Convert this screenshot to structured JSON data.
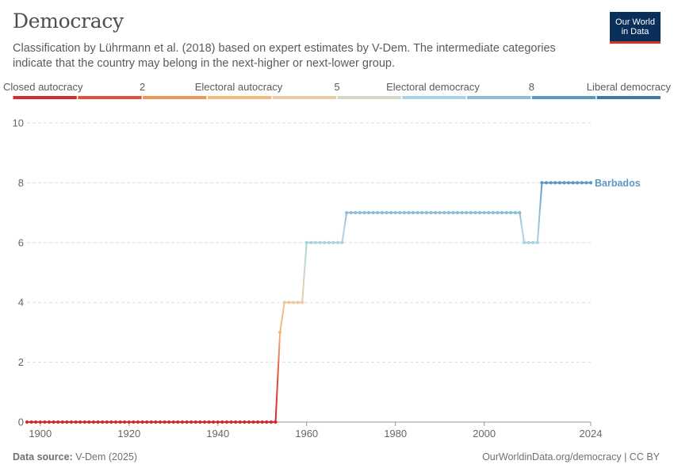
{
  "header": {
    "title": "Democracy",
    "subtitle": "Classification by Lührmann et al. (2018) based on expert estimates by V-Dem. The intermediate categories indicate that the country may belong in the next-higher or next-lower group."
  },
  "logo": {
    "line1": "Our World",
    "line2": "in Data"
  },
  "footer": {
    "source_label": "Data source:",
    "source": "V-Dem (2025)",
    "url": "OurWorldinData.org/democracy | CC BY"
  },
  "legend": {
    "labels": [
      "Closed autocracy",
      "2",
      "Electoral autocracy",
      "5",
      "Electoral democracy",
      "8",
      "Liberal democracy"
    ],
    "colors": [
      "#d42a2a",
      "#e0513f",
      "#f0965a",
      "#f4b87a",
      "#ecc9a0",
      "#cdd9c0",
      "#a9d3df",
      "#8bbfd6",
      "#5b98c2",
      "#3c79ad"
    ]
  },
  "chart_data": {
    "type": "line",
    "x_ticks": [
      1900,
      1920,
      1940,
      1960,
      1980,
      2000,
      2024
    ],
    "y_ticks": [
      0,
      2,
      4,
      6,
      8,
      10
    ],
    "xlim": [
      1897,
      2024
    ],
    "ylim": [
      0,
      10
    ],
    "grid": true,
    "series": [
      {
        "name": "Barbados",
        "segments": [
          {
            "x_from": 1897,
            "x_to": 1953,
            "y": 0
          },
          {
            "x": 1954,
            "y": 3
          },
          {
            "x_from": 1955,
            "x_to": 1959,
            "y": 4
          },
          {
            "x_from": 1960,
            "x_to": 1968,
            "y": 6
          },
          {
            "x_from": 1969,
            "x_to": 2008,
            "y": 7
          },
          {
            "x_from": 2009,
            "x_to": 2012,
            "y": 6
          },
          {
            "x_from": 2013,
            "x_to": 2024,
            "y": 8
          }
        ]
      }
    ]
  }
}
